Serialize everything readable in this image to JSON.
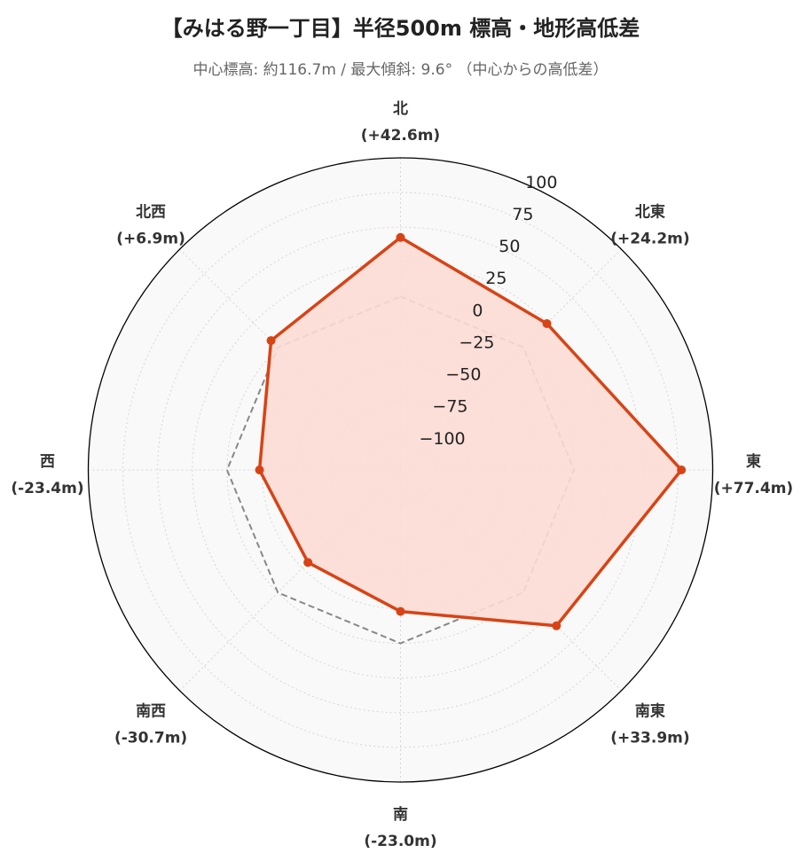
{
  "title": "【みはる野一丁目】半径500m 標高・地形高低差",
  "subtitle": "中心標高: 約116.7m / 最大傾斜: 9.6° （中心からの高低差）",
  "chart_data": {
    "type": "radar",
    "directions": [
      "北",
      "北東",
      "東",
      "南東",
      "南",
      "南西",
      "西",
      "北西"
    ],
    "direction_values_text": [
      "(+42.6m)",
      "(+24.2m)",
      "(+77.4m)",
      "(+33.9m)",
      "(-23.0m)",
      "(-30.7m)",
      "(-23.4m)",
      "(+6.9m)"
    ],
    "series": [
      {
        "values": [
          42.6,
          24.2,
          77.4,
          33.9,
          -23.0,
          -30.7,
          -23.4,
          6.9
        ],
        "color": "#d84315",
        "fill": "#fcdcd5"
      },
      {
        "values": [
          0,
          0,
          0,
          0,
          0,
          0,
          0,
          0
        ],
        "color": "#888888",
        "style": "dashed"
      }
    ],
    "r_ticks": [
      -100,
      -75,
      -50,
      -25,
      0,
      25,
      50,
      75,
      100
    ],
    "r_tick_labels": [
      "−100",
      "−75",
      "−50",
      "−25",
      "0",
      "25",
      "50",
      "75",
      "100"
    ],
    "rlim": [
      -125,
      100
    ],
    "grid": true
  }
}
